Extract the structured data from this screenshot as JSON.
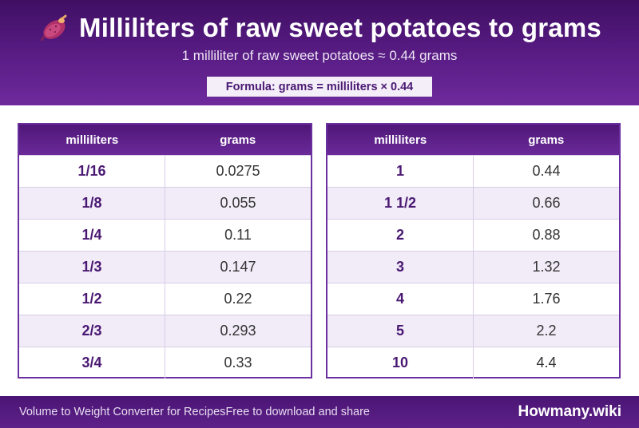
{
  "header": {
    "icon": "sweet-potato-icon",
    "title": "Milliliters of raw sweet potatoes to grams",
    "subtitle": "1 milliliter of raw sweet potatoes ≈ 0.44 grams",
    "formula": "Formula: grams = milliliters × 0.44"
  },
  "tables": [
    {
      "headers": [
        "milliliters",
        "grams"
      ],
      "rows": [
        [
          "1/16",
          "0.0275"
        ],
        [
          "1/8",
          "0.055"
        ],
        [
          "1/4",
          "0.11"
        ],
        [
          "1/3",
          "0.147"
        ],
        [
          "1/2",
          "0.22"
        ],
        [
          "2/3",
          "0.293"
        ],
        [
          "3/4",
          "0.33"
        ]
      ]
    },
    {
      "headers": [
        "milliliters",
        "grams"
      ],
      "rows": [
        [
          "1",
          "0.44"
        ],
        [
          "1 1/2",
          "0.66"
        ],
        [
          "2",
          "0.88"
        ],
        [
          "3",
          "1.32"
        ],
        [
          "4",
          "1.76"
        ],
        [
          "5",
          "2.2"
        ],
        [
          "10",
          "4.4"
        ]
      ]
    }
  ],
  "footer": {
    "left_text": "Volume to Weight Converter for Recipes",
    "mid_text": "Free to download and share",
    "brand": "Howmany.wiki"
  },
  "colors": {
    "header_bg": "#5a1d86",
    "accent": "#6b2fa0",
    "alt_row": "#f1ecf8",
    "milliliter_text": "#4a1872"
  }
}
